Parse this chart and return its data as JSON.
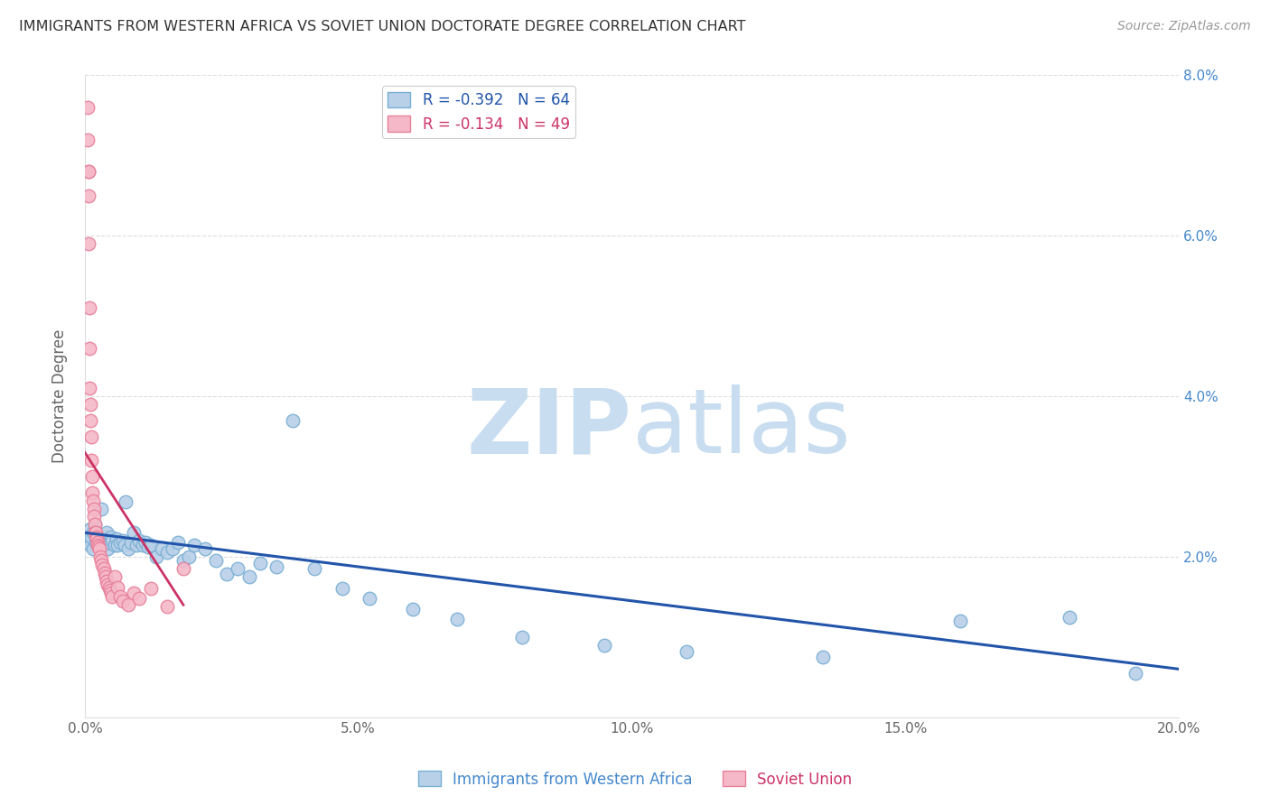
{
  "title": "IMMIGRANTS FROM WESTERN AFRICA VS SOVIET UNION DOCTORATE DEGREE CORRELATION CHART",
  "source": "Source: ZipAtlas.com",
  "ylabel": "Doctorate Degree",
  "xlim": [
    0,
    0.2
  ],
  "ylim": [
    0,
    0.08
  ],
  "xticks": [
    0.0,
    0.05,
    0.1,
    0.15,
    0.2
  ],
  "yticks": [
    0.0,
    0.02,
    0.04,
    0.06,
    0.08
  ],
  "xticklabels": [
    "0.0%",
    "5.0%",
    "10.0%",
    "15.0%",
    "20.0%"
  ],
  "yticklabels_right": [
    "",
    "2.0%",
    "4.0%",
    "6.0%",
    "8.0%"
  ],
  "legend_blue_label": "Immigrants from Western Africa",
  "legend_pink_label": "Soviet Union",
  "blue_R": -0.392,
  "blue_N": 64,
  "pink_R": -0.134,
  "pink_N": 49,
  "blue_color": "#b8d0e8",
  "blue_edge": "#7aafd4",
  "pink_color": "#f5b8c8",
  "pink_edge": "#e8809a",
  "blue_line_color": "#2255aa",
  "pink_line_color": "#cc3366",
  "watermark_zip": "ZIP",
  "watermark_atlas": "atlas",
  "watermark_color_zip": "#c8ddf0",
  "watermark_color_atlas": "#c8ddf0",
  "background_color": "#ffffff",
  "title_color": "#333333",
  "grid_color": "#dddddd",
  "blue_scatter_x": [
    0.0008,
    0.001,
    0.001,
    0.0012,
    0.0015,
    0.0015,
    0.0018,
    0.002,
    0.0022,
    0.0025,
    0.0028,
    0.003,
    0.0032,
    0.0035,
    0.0038,
    0.004,
    0.0042,
    0.0045,
    0.0048,
    0.005,
    0.0055,
    0.0058,
    0.006,
    0.0065,
    0.007,
    0.0072,
    0.0075,
    0.008,
    0.0085,
    0.009,
    0.0095,
    0.01,
    0.0105,
    0.011,
    0.0115,
    0.012,
    0.013,
    0.014,
    0.015,
    0.016,
    0.017,
    0.018,
    0.019,
    0.02,
    0.022,
    0.024,
    0.026,
    0.028,
    0.03,
    0.032,
    0.035,
    0.038,
    0.042,
    0.047,
    0.052,
    0.06,
    0.068,
    0.08,
    0.095,
    0.11,
    0.135,
    0.16,
    0.18,
    0.192
  ],
  "blue_scatter_y": [
    0.022,
    0.0235,
    0.0215,
    0.0225,
    0.021,
    0.023,
    0.024,
    0.0218,
    0.0228,
    0.0225,
    0.0215,
    0.026,
    0.022,
    0.0215,
    0.0225,
    0.023,
    0.021,
    0.0218,
    0.0225,
    0.022,
    0.0215,
    0.0222,
    0.0215,
    0.0218,
    0.022,
    0.0215,
    0.0268,
    0.021,
    0.0218,
    0.023,
    0.0215,
    0.022,
    0.0215,
    0.0218,
    0.0212,
    0.0215,
    0.02,
    0.021,
    0.0205,
    0.021,
    0.0218,
    0.0195,
    0.02,
    0.0215,
    0.021,
    0.0195,
    0.0178,
    0.0185,
    0.0175,
    0.0192,
    0.0188,
    0.037,
    0.0185,
    0.016,
    0.0148,
    0.0135,
    0.0122,
    0.01,
    0.009,
    0.0082,
    0.0075,
    0.012,
    0.0125,
    0.0055
  ],
  "pink_scatter_x": [
    0.0005,
    0.00055,
    0.0006,
    0.00065,
    0.0007,
    0.00075,
    0.0008,
    0.00085,
    0.0009,
    0.00095,
    0.001,
    0.0011,
    0.0012,
    0.0013,
    0.0014,
    0.0015,
    0.0016,
    0.0017,
    0.0018,
    0.0019,
    0.002,
    0.0021,
    0.0022,
    0.0023,
    0.0024,
    0.0025,
    0.0026,
    0.0028,
    0.003,
    0.0032,
    0.0034,
    0.0036,
    0.0038,
    0.004,
    0.0042,
    0.0044,
    0.0046,
    0.0048,
    0.005,
    0.0055,
    0.006,
    0.0065,
    0.007,
    0.008,
    0.009,
    0.01,
    0.012,
    0.015,
    0.018
  ],
  "pink_scatter_y": [
    0.076,
    0.072,
    0.068,
    0.068,
    0.065,
    0.059,
    0.051,
    0.046,
    0.041,
    0.039,
    0.037,
    0.035,
    0.032,
    0.03,
    0.028,
    0.027,
    0.026,
    0.025,
    0.024,
    0.023,
    0.023,
    0.0225,
    0.0222,
    0.0218,
    0.0215,
    0.0212,
    0.021,
    0.02,
    0.0195,
    0.019,
    0.0185,
    0.018,
    0.0175,
    0.017,
    0.0165,
    0.0162,
    0.0158,
    0.0155,
    0.015,
    0.0175,
    0.0162,
    0.015,
    0.0145,
    0.014,
    0.0155,
    0.0148,
    0.016,
    0.0138,
    0.0185
  ],
  "pink_line_x0": 0.0,
  "pink_line_x1": 0.018,
  "pink_line_y0": 0.033,
  "pink_line_y1": 0.014,
  "blue_line_x0": 0.0,
  "blue_line_x1": 0.2,
  "blue_line_y0": 0.023,
  "blue_line_y1": 0.006
}
